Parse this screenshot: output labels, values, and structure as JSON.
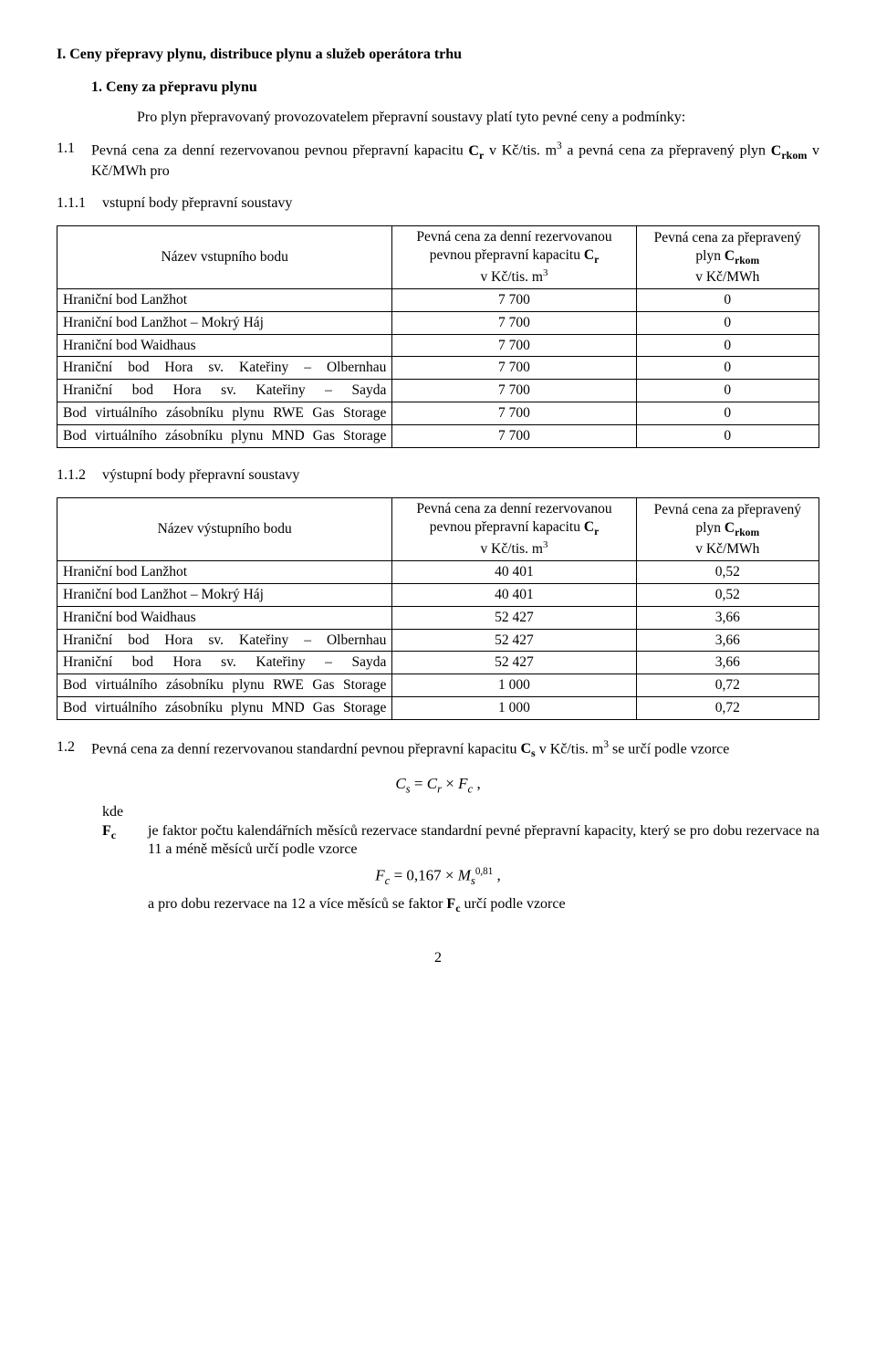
{
  "section_heading": "I.    Ceny přepravy plynu, distribuce plynu a služeb operátora trhu",
  "subsection_heading": "1.    Ceny za přepravu plynu",
  "intro": "Pro plyn přepravovaný provozovatelem přepravní soustavy platí tyto pevné ceny a podmínky:",
  "p11_label": "1.1",
  "p11_text_pre": "Pevná cena za denní rezervovanou pevnou přepravní kapacitu ",
  "p11_Cr": "C",
  "p11_Cr_sub": "r",
  "p11_text_mid1": " v Kč/tis. m",
  "p11_sup3": "3",
  "p11_text_mid2": " a pevná cena za přepravený plyn ",
  "p11_Crkom": "C",
  "p11_Crkom_sub": "rkom",
  "p11_text_end": " v Kč/MWh pro",
  "p111_label": "1.1.1",
  "p111_text": "vstupní body přepravní soustavy",
  "table1": {
    "col0": "Název vstupního bodu",
    "col1_l1": "Pevná cena za denní rezervovanou",
    "col1_l2a": "pevnou přepravní kapacitu ",
    "col1_l2b": "C",
    "col1_l2c": "r",
    "col1_l3a": "v Kč/tis. m",
    "col2_l1": "Pevná cena za přepravený",
    "col2_l2a": "plyn ",
    "col2_l2b": "C",
    "col2_l2c": "rkom",
    "col2_l3": "v Kč/MWh",
    "rows": [
      {
        "name": "Hraniční bod Lanžhot",
        "v1": "7 700",
        "v2": "0",
        "j": false
      },
      {
        "name": "Hraniční bod Lanžhot – Mokrý Háj",
        "v1": "7 700",
        "v2": "0",
        "j": false
      },
      {
        "name": "Hraniční bod Waidhaus",
        "v1": "7 700",
        "v2": "0",
        "j": false
      },
      {
        "name": "Hraniční bod Hora sv. Kateřiny – Olbernhau",
        "v1": "7 700",
        "v2": "0",
        "j": true
      },
      {
        "name": "Hraniční bod Hora sv. Kateřiny – Sayda",
        "v1": "7 700",
        "v2": "0",
        "j": true
      },
      {
        "name": "Bod virtuálního zásobníku plynu RWE Gas Storage",
        "v1": "7 700",
        "v2": "0",
        "j": true
      },
      {
        "name": "Bod virtuálního zásobníku plynu MND Gas Storage",
        "v1": "7 700",
        "v2": "0",
        "j": true
      }
    ]
  },
  "p112_label": "1.1.2",
  "p112_text": "výstupní body přepravní soustavy",
  "table2": {
    "col0": "Název výstupního bodu",
    "rows": [
      {
        "name": "Hraniční bod Lanžhot",
        "v1": "40 401",
        "v2": "0,52",
        "j": false
      },
      {
        "name": "Hraniční bod Lanžhot – Mokrý Háj",
        "v1": "40 401",
        "v2": "0,52",
        "j": false
      },
      {
        "name": "Hraniční bod Waidhaus",
        "v1": "52 427",
        "v2": "3,66",
        "j": false
      },
      {
        "name": "Hraniční bod Hora sv. Kateřiny – Olbernhau",
        "v1": "52 427",
        "v2": "3,66",
        "j": true
      },
      {
        "name": "Hraniční bod Hora sv. Kateřiny – Sayda",
        "v1": "52 427",
        "v2": "3,66",
        "j": true
      },
      {
        "name": "Bod virtuálního zásobníku plynu RWE Gas Storage",
        "v1": "1 000",
        "v2": "0,72",
        "j": true
      },
      {
        "name": "Bod virtuálního zásobníku plynu MND Gas Storage",
        "v1": "1 000",
        "v2": "0,72",
        "j": true
      }
    ]
  },
  "p12_label": "1.2",
  "p12_text_a": "Pevná cena za denní rezervovanou standardní pevnou přepravní kapacitu ",
  "p12_Cs": "C",
  "p12_Cs_sub": "s",
  "p12_text_b": " v Kč/tis. m",
  "p12_text_c": " se určí podle vzorce",
  "formula1_a": "C",
  "formula1_b": "s",
  "formula1_eq": " = ",
  "formula1_c": "C",
  "formula1_d": "r",
  "formula1_mul": " × ",
  "formula1_e": "F",
  "formula1_f": "c",
  "formula1_end": " ,",
  "kde_label": "kde",
  "def_Fc_sym1": "F",
  "def_Fc_sym2": "c",
  "def_Fc_text": "je faktor počtu kalendářních měsíců rezervace standardní pevné přepravní kapacity, který se pro dobu rezervace na 11 a méně měsíců určí podle vzorce",
  "formula2": "F",
  "formula2_c": "c",
  "formula2_eq": " = 0,167 × ",
  "formula2_M": "M",
  "formula2_s": "s",
  "formula2_exp": "0,81",
  "formula2_end": " ,",
  "after_formula2_a": "a pro dobu rezervace na 12 a více měsíců se faktor ",
  "after_formula2_F": "F",
  "after_formula2_c": "c",
  "after_formula2_b": " určí podle vzorce",
  "page_number": "2"
}
